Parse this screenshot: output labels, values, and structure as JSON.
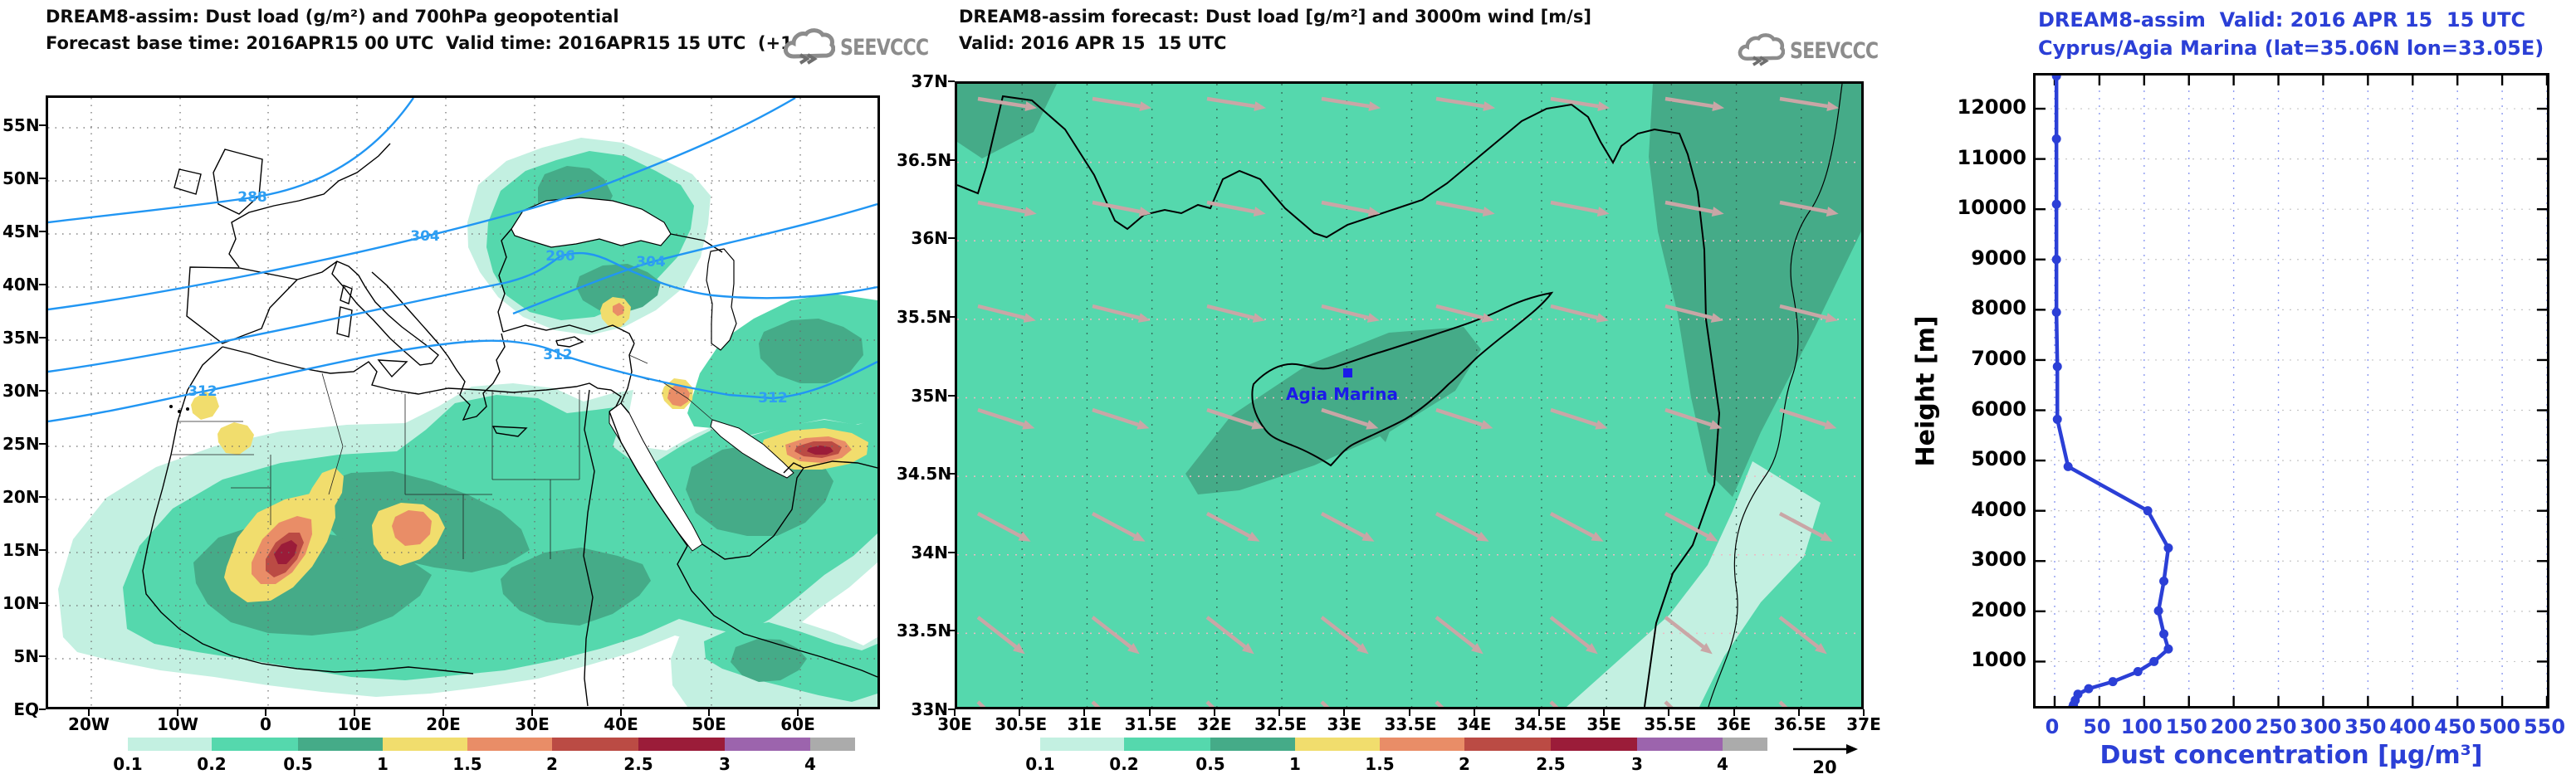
{
  "left_panel": {
    "title_line1": "DREAM8-assim: Dust load (g/m²) and 700hPa geopotential",
    "title_line2": "Forecast base time: 2016APR15 00 UTC  Valid time: 2016APR15 15 UTC  (+15)",
    "logo_text": "SEEVCCC",
    "lat_labels": [
      "55N",
      "50N",
      "45N",
      "40N",
      "35N",
      "30N",
      "25N",
      "20N",
      "15N",
      "10N",
      "5N",
      "EQ"
    ],
    "lon_labels": [
      "20W",
      "10W",
      "0",
      "10E",
      "20E",
      "30E",
      "40E",
      "50E",
      "60E"
    ],
    "contour_labels": [
      "288",
      "304",
      "296",
      "304",
      "312",
      "312",
      "312"
    ],
    "geopotential_values_dam": [
      288,
      296,
      304,
      312
    ]
  },
  "middle_panel": {
    "title_line1": "DREAM8-assim forecast: Dust load [g/m²] and 3000m wind [m/s]",
    "title_line2": "Valid: 2016 APR 15  15 UTC",
    "logo_text": "SEEVCCC",
    "lat_labels": [
      "37N",
      "36.5N",
      "36N",
      "35.5N",
      "35N",
      "34.5N",
      "34N",
      "33.5N",
      "33N"
    ],
    "lon_labels": [
      "30E",
      "30.5E",
      "31E",
      "31.5E",
      "32E",
      "32.5E",
      "33E",
      "33.5E",
      "34E",
      "34.5E",
      "35E",
      "35.5E",
      "36E",
      "36.5E",
      "37E"
    ],
    "station_label": "Agia Marina",
    "wind_ref_label": "20"
  },
  "colorbar": {
    "labels": [
      "0.1",
      "0.2",
      "0.5",
      "1",
      "1.5",
      "2",
      "2.5",
      "3",
      "4"
    ],
    "colors": [
      "#c3f0e1",
      "#55d8ad",
      "#45ab88",
      "#f1dd6d",
      "#e98d67",
      "#bb4b44",
      "#9b1c39",
      "#9c64ad",
      "#ababab"
    ],
    "units_left": "g/m²",
    "units_middle": "g/m²"
  },
  "chart_data": {
    "type": "line",
    "title_line1": "DREAM8-assim  Valid: 2016 APR 15  15 UTC",
    "title_line2": "Cyprus/Agia Marina (lat=35.06N lon=33.05E)",
    "xlabel": "Dust concentration [µg/m³]",
    "ylabel": "Height [m]",
    "xlim": [
      0,
      550
    ],
    "ylim": [
      0,
      12650
    ],
    "xticks": [
      0,
      50,
      100,
      150,
      200,
      250,
      300,
      350,
      400,
      450,
      500,
      550
    ],
    "yticks": [
      1000,
      2000,
      3000,
      4000,
      5000,
      6000,
      7000,
      8000,
      9000,
      10000,
      11000,
      12000
    ],
    "grid": true,
    "legend_position": "none",
    "line_color": "#2b3fd6",
    "series": [
      {
        "name": "dust_concentration_profile",
        "heights_m": [
          12650,
          11400,
          10100,
          9000,
          7950,
          6870,
          5820,
          4880,
          4000,
          3260,
          2600,
          2010,
          1550,
          1250,
          1000,
          800,
          600,
          460,
          350,
          230,
          140,
          86
        ],
        "values_ugm3": [
          2,
          2,
          2,
          2,
          2,
          3,
          3,
          15,
          104,
          127,
          122,
          116,
          122,
          127,
          111,
          93,
          65,
          38,
          26,
          23,
          21,
          20
        ]
      }
    ]
  }
}
